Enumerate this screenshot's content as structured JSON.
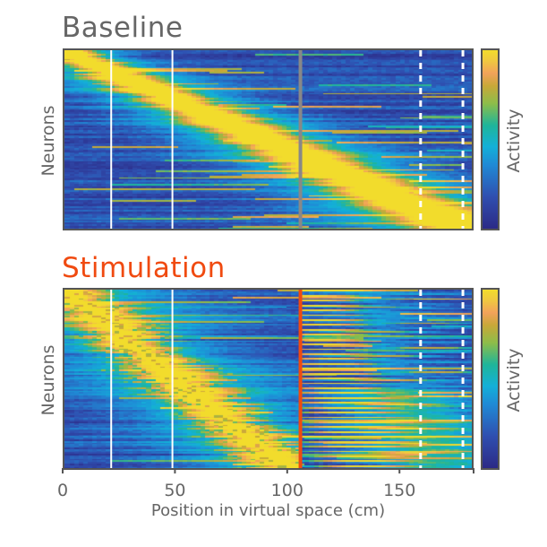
{
  "chart_data": [
    {
      "type": "heatmap",
      "title": "Baseline",
      "title_color": "#666666",
      "ylabel": "Neurons",
      "colorbar_label": "Activity",
      "xlabel": "Position in virtual space (cm)",
      "xlim": [
        0,
        183
      ],
      "xticks": [
        0,
        50,
        100,
        150
      ],
      "xtick_labels": [
        "0",
        "50",
        "100",
        "150"
      ],
      "n_neurons": 110,
      "pattern": "diagonal sequence: each neuron's peak activity shifts along position; sorted so peaks run from top-left (0 cm) to bottom-right (~180 cm)",
      "peak_start_cm": 0,
      "peak_end_cm": 180,
      "markers": [
        {
          "name": "landmark-1",
          "x": 21,
          "style": "solid",
          "color": "#ffffff"
        },
        {
          "name": "landmark-2",
          "x": 48.5,
          "style": "solid",
          "color": "#ffffff"
        },
        {
          "name": "stimulation-position",
          "x": 106,
          "style": "solid",
          "color": "#888888"
        },
        {
          "name": "reward-zone-start",
          "x": 160,
          "style": "dashed",
          "color": "#ffffff"
        },
        {
          "name": "reward-zone-end",
          "x": 179,
          "style": "dashed",
          "color": "#ffffff"
        }
      ]
    },
    {
      "type": "heatmap",
      "title": "Stimulation",
      "title_color": "#f04a10",
      "ylabel": "Neurons",
      "colorbar_label": "Activity",
      "xlabel": "Position in virtual space (cm)",
      "xlim": [
        0,
        183
      ],
      "xticks": [
        0,
        50,
        100,
        150
      ],
      "xtick_labels": [
        "0",
        "50",
        "100",
        "150"
      ],
      "n_neurons": 110,
      "pattern": "sequence from 0 to ~106 cm, disrupted at stimulation site; after the stimulation line activity resets with broad fields across 106-183 cm",
      "peak_start_cm": 0,
      "peak_end_cm": 106,
      "markers": [
        {
          "name": "landmark-1",
          "x": 21,
          "style": "solid",
          "color": "#ffffff"
        },
        {
          "name": "landmark-2",
          "x": 48.5,
          "style": "solid",
          "color": "#ffffff"
        },
        {
          "name": "stimulation-position",
          "x": 106,
          "style": "solid",
          "color": "#f04a10"
        },
        {
          "name": "reward-zone-start",
          "x": 160,
          "style": "dashed",
          "color": "#ffffff"
        },
        {
          "name": "reward-zone-end",
          "x": 179,
          "style": "dashed",
          "color": "#ffffff"
        }
      ]
    }
  ],
  "colormap": [
    "#2c2a86",
    "#2f4fb0",
    "#1f8bd6",
    "#13b0d8",
    "#1fb59a",
    "#8cbd4a",
    "#c8a838",
    "#f2a25a",
    "#f0c840",
    "#f2dc2c"
  ],
  "axis_color": "#555555"
}
